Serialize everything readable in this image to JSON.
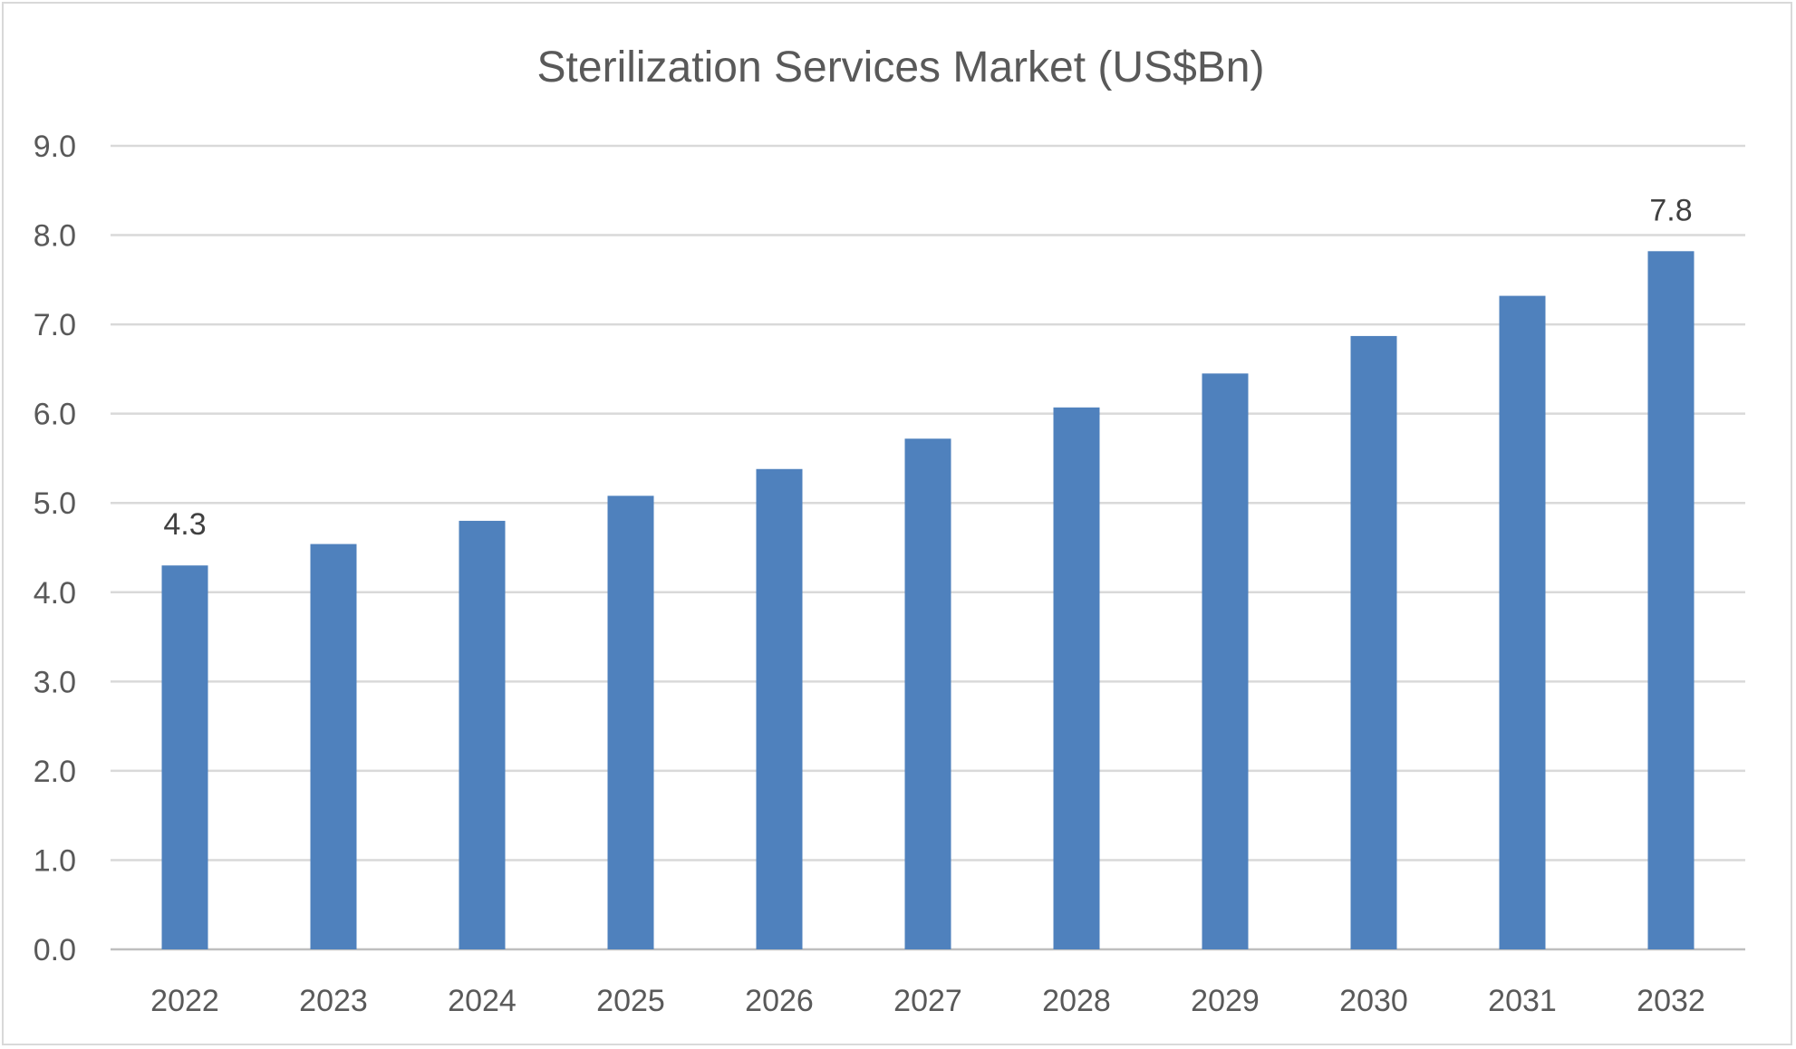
{
  "chart_data": {
    "type": "bar",
    "title": "Sterilization Services Market (US$Bn)",
    "xlabel": "",
    "ylabel": "",
    "categories": [
      "2022",
      "2023",
      "2024",
      "2025",
      "2026",
      "2027",
      "2028",
      "2029",
      "2030",
      "2031",
      "2032"
    ],
    "values": [
      4.3,
      4.54,
      4.8,
      5.08,
      5.38,
      5.72,
      6.07,
      6.45,
      6.87,
      7.32,
      7.82
    ],
    "ylim": [
      0,
      9
    ],
    "yticks": [
      "0.0",
      "1.0",
      "2.0",
      "3.0",
      "4.0",
      "5.0",
      "6.0",
      "7.0",
      "8.0",
      "9.0"
    ],
    "data_labels": [
      {
        "index": 0,
        "text": "4.3"
      },
      {
        "index": 10,
        "text": "7.8"
      }
    ],
    "grid": true,
    "legend": "none",
    "bar_color": "#4f81bd"
  }
}
